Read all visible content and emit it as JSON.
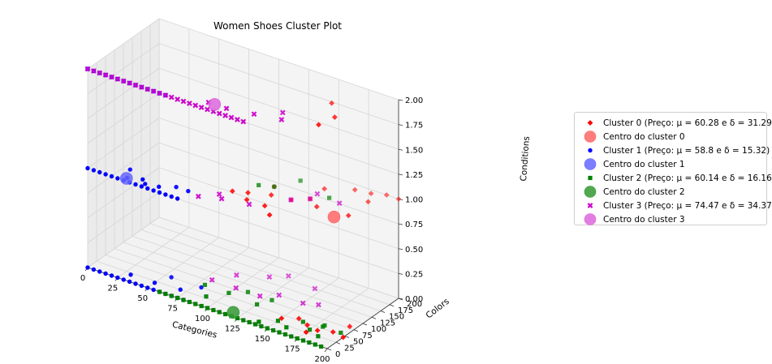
{
  "chart_data": {
    "type": "scatter",
    "title": "Women Shoes Cluster Plot",
    "xlabel": "Categories",
    "ylabel": "Colors",
    "zlabel": "Conditions",
    "xlim": [
      0,
      200
    ],
    "ylim": [
      0,
      200
    ],
    "zlim": [
      0,
      2
    ],
    "x_ticks": [
      "0",
      "25",
      "50",
      "75",
      "100",
      "125",
      "150",
      "175",
      "200"
    ],
    "y_ticks": [
      "0",
      "25",
      "50",
      "75",
      "100",
      "125",
      "150",
      "175",
      "200"
    ],
    "z_ticks": [
      "0.00",
      "0.25",
      "0.50",
      "0.75",
      "1.00",
      "1.25",
      "1.50",
      "1.75",
      "2.00"
    ],
    "grid": true,
    "legend_position": "right",
    "series": [
      {
        "name": "Cluster 0 (Preço: μ = 60.28 e δ = 31.29)",
        "marker": "diamond",
        "color": "#ff0000",
        "points": [
          [
            175,
            60,
            2
          ],
          [
            178,
            95,
            2
          ],
          [
            165,
            130,
            2
          ],
          [
            150,
            160,
            1
          ],
          [
            168,
            185,
            1
          ],
          [
            185,
            165,
            1
          ],
          [
            180,
            190,
            1
          ],
          [
            190,
            200,
            1
          ],
          [
            200,
            200,
            1
          ],
          [
            185,
            110,
            1
          ],
          [
            160,
            105,
            1
          ],
          [
            150,
            120,
            1
          ],
          [
            140,
            100,
            1
          ],
          [
            125,
            95,
            1
          ],
          [
            120,
            120,
            1
          ],
          [
            110,
            80,
            1
          ],
          [
            100,
            70,
            1
          ],
          [
            115,
            60,
            1
          ],
          [
            130,
            60,
            1
          ],
          [
            140,
            40,
            1
          ],
          [
            150,
            40,
            0
          ],
          [
            170,
            45,
            0
          ],
          [
            180,
            40,
            0
          ],
          [
            175,
            25,
            0
          ],
          [
            190,
            50,
            0
          ],
          [
            200,
            45,
            0
          ],
          [
            160,
            55,
            0
          ],
          [
            195,
            80,
            0
          ]
        ]
      },
      {
        "name": "Centro do cluster 0",
        "marker": "center",
        "color": "#ff6666",
        "points": [
          [
            178,
            93,
            1
          ]
        ]
      },
      {
        "name": "Cluster 1 (Preço: μ = 58.8 e δ = 15.32)",
        "marker": "circle",
        "color": "#0000ff",
        "points": [
          [
            0,
            0,
            2
          ],
          [
            5,
            0,
            2
          ],
          [
            10,
            0,
            2
          ],
          [
            15,
            0,
            2
          ],
          [
            20,
            0,
            2
          ],
          [
            25,
            0,
            2
          ],
          [
            30,
            0,
            2
          ],
          [
            35,
            0,
            2
          ],
          [
            40,
            0,
            2
          ],
          [
            45,
            0,
            2
          ],
          [
            50,
            0,
            2
          ],
          [
            55,
            0,
            2
          ],
          [
            60,
            0,
            2
          ],
          [
            65,
            0,
            2
          ],
          [
            0,
            0,
            1
          ],
          [
            5,
            0,
            1
          ],
          [
            10,
            0,
            1
          ],
          [
            15,
            0,
            1
          ],
          [
            20,
            0,
            1
          ],
          [
            25,
            0,
            1
          ],
          [
            30,
            0,
            1
          ],
          [
            35,
            0,
            1
          ],
          [
            40,
            0,
            1
          ],
          [
            45,
            0,
            1
          ],
          [
            50,
            0,
            1
          ],
          [
            55,
            0,
            1
          ],
          [
            60,
            0,
            1
          ],
          [
            65,
            0,
            1
          ],
          [
            70,
            0,
            1
          ],
          [
            75,
            0,
            1
          ],
          [
            30,
            10,
            1
          ],
          [
            45,
            10,
            1
          ],
          [
            55,
            15,
            1
          ],
          [
            40,
            20,
            1
          ],
          [
            65,
            30,
            1
          ],
          [
            75,
            30,
            1
          ],
          [
            25,
            35,
            1
          ],
          [
            0,
            0,
            0
          ],
          [
            5,
            0,
            0
          ],
          [
            10,
            0,
            0
          ],
          [
            15,
            0,
            0
          ],
          [
            20,
            0,
            0
          ],
          [
            25,
            0,
            0
          ],
          [
            30,
            0,
            0
          ],
          [
            35,
            0,
            0
          ],
          [
            40,
            0,
            0
          ],
          [
            45,
            0,
            0
          ],
          [
            50,
            0,
            0
          ],
          [
            55,
            0,
            0
          ],
          [
            60,
            0,
            0
          ],
          [
            65,
            0,
            0
          ],
          [
            70,
            0,
            0
          ],
          [
            75,
            0,
            0
          ],
          [
            80,
            0,
            0
          ],
          [
            30,
            20,
            0
          ],
          [
            50,
            20,
            0
          ],
          [
            70,
            25,
            0
          ],
          [
            55,
            50,
            0
          ],
          [
            80,
            50,
            0
          ]
        ]
      },
      {
        "name": "Centro do cluster 1",
        "marker": "center",
        "color": "#6666ff",
        "points": [
          [
            30,
            8,
            1
          ]
        ]
      },
      {
        "name": "Cluster 2 (Preço: μ = 60.14 e δ = 16.16)",
        "marker": "square",
        "color": "#008000",
        "points": [
          [
            60,
            0,
            0
          ],
          [
            65,
            0,
            0
          ],
          [
            70,
            0,
            0
          ],
          [
            75,
            0,
            0
          ],
          [
            80,
            0,
            0
          ],
          [
            85,
            0,
            0
          ],
          [
            90,
            0,
            0
          ],
          [
            95,
            0,
            0
          ],
          [
            100,
            0,
            0
          ],
          [
            105,
            0,
            0
          ],
          [
            110,
            0,
            0
          ],
          [
            115,
            0,
            0
          ],
          [
            120,
            0,
            0
          ],
          [
            125,
            0,
            0
          ],
          [
            130,
            0,
            0
          ],
          [
            135,
            0,
            0
          ],
          [
            140,
            0,
            0
          ],
          [
            145,
            0,
            0
          ],
          [
            150,
            0,
            0
          ],
          [
            155,
            0,
            0
          ],
          [
            160,
            0,
            0
          ],
          [
            165,
            0,
            0
          ],
          [
            170,
            0,
            0
          ],
          [
            175,
            0,
            0
          ],
          [
            180,
            0,
            0
          ],
          [
            185,
            0,
            0
          ],
          [
            190,
            0,
            0
          ],
          [
            195,
            0,
            0
          ],
          [
            140,
            10,
            0
          ],
          [
            150,
            30,
            0
          ],
          [
            165,
            50,
            0
          ],
          [
            90,
            30,
            0
          ],
          [
            80,
            60,
            0
          ],
          [
            100,
            60,
            0
          ],
          [
            110,
            80,
            0
          ],
          [
            130,
            80,
            0
          ],
          [
            160,
            20,
            0
          ],
          [
            175,
            35,
            0
          ],
          [
            185,
            25,
            0
          ],
          [
            180,
            55,
            0
          ],
          [
            160,
            140,
            1
          ],
          [
            120,
            120,
            1
          ],
          [
            130,
            160,
            1
          ],
          [
            110,
            110,
            1
          ],
          [
            180,
            60,
            0
          ],
          [
            195,
            55,
            0
          ],
          [
            125,
            55,
            0
          ]
        ]
      },
      {
        "name": "Centro do cluster 2",
        "marker": "center",
        "color": "#339933",
        "points": [
          [
            118,
            12,
            0
          ]
        ]
      },
      {
        "name": "Cluster 3 (Preço: μ = 74.47 e δ = 34.37)",
        "marker": "x",
        "color": "#cc00cc",
        "points": [
          [
            0,
            0,
            2
          ],
          [
            5,
            0,
            2
          ],
          [
            10,
            0,
            2
          ],
          [
            15,
            0,
            2
          ],
          [
            20,
            0,
            2
          ],
          [
            25,
            0,
            2
          ],
          [
            30,
            0,
            2
          ],
          [
            35,
            0,
            2
          ],
          [
            40,
            0,
            2
          ],
          [
            45,
            0,
            2
          ],
          [
            50,
            0,
            2
          ],
          [
            55,
            0,
            2
          ],
          [
            60,
            0,
            2
          ],
          [
            65,
            0,
            2
          ],
          [
            70,
            0,
            2
          ],
          [
            75,
            0,
            2
          ],
          [
            80,
            0,
            2
          ],
          [
            85,
            0,
            2
          ],
          [
            90,
            0,
            2
          ],
          [
            95,
            0,
            2
          ],
          [
            100,
            0,
            2
          ],
          [
            105,
            0,
            2
          ],
          [
            110,
            0,
            2
          ],
          [
            115,
            0,
            2
          ],
          [
            120,
            0,
            2
          ],
          [
            125,
            0,
            2
          ],
          [
            130,
            0,
            2
          ],
          [
            95,
            20,
            2
          ],
          [
            110,
            20,
            2
          ],
          [
            130,
            30,
            2
          ],
          [
            150,
            40,
            2
          ],
          [
            145,
            60,
            2
          ],
          [
            100,
            40,
            1
          ],
          [
            85,
            25,
            1
          ],
          [
            95,
            50,
            1
          ],
          [
            120,
            50,
            1
          ],
          [
            140,
            100,
            1
          ],
          [
            150,
            120,
            1
          ],
          [
            160,
            110,
            0
          ],
          [
            150,
            140,
            1
          ],
          [
            170,
            135,
            1
          ],
          [
            100,
            80,
            0
          ],
          [
            130,
            100,
            0
          ],
          [
            80,
            80,
            0
          ],
          [
            120,
            80,
            0
          ],
          [
            110,
            140,
            0
          ],
          [
            150,
            100,
            0
          ],
          [
            145,
            150,
            0
          ],
          [
            120,
            160,
            0
          ],
          [
            90,
            115,
            0
          ]
        ]
      },
      {
        "name": "Centro do cluster 3",
        "marker": "center",
        "color": "#dd66dd",
        "points": [
          [
            100,
            20,
            2
          ]
        ]
      }
    ]
  }
}
